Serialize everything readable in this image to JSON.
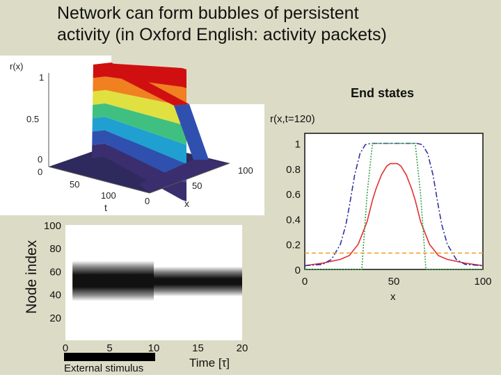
{
  "slide": {
    "title_line1": "Network can form bubbles of persistent",
    "title_line2": "activity (in Oxford English: activity packets)",
    "end_states_label": "End states"
  },
  "chart_data": [
    {
      "type": "surface",
      "zlabel": "r(x)",
      "zticks": [
        "1",
        "0.5",
        "0"
      ],
      "tlabel": "t",
      "tticks": [
        "0",
        "50",
        "100"
      ],
      "xlabel": "x",
      "xticks": [
        "0",
        "50",
        "100"
      ],
      "colormap": [
        "#3a2e6e",
        "#3050b0",
        "#20a0d0",
        "#40c080",
        "#e0e040",
        "#f08020",
        "#d01010"
      ]
    },
    {
      "type": "heatmap",
      "ylabel": "Node index",
      "xlabel": "Time [τ]",
      "xticks": [
        0,
        5,
        10,
        15,
        20
      ],
      "yticks": [
        20,
        40,
        60,
        80,
        100
      ],
      "xlim": [
        0,
        20
      ],
      "ylim": [
        0,
        100
      ],
      "stimulus_label": "External stimulus",
      "stimulus_interval": [
        0,
        10
      ],
      "activity_bands": [
        {
          "t_start": 0.8,
          "t_end": 10,
          "node_low": 34,
          "node_high": 69
        },
        {
          "t_start": 10,
          "t_end": 20,
          "node_low": 38,
          "node_high": 64
        }
      ]
    },
    {
      "type": "line",
      "ylabel": "r(x,t=120)",
      "xlabel": "x",
      "xlim": [
        0,
        100
      ],
      "ylim": [
        0,
        1.08
      ],
      "xticks": [
        0,
        50,
        100
      ],
      "yticks": [
        0,
        0.2,
        0.4,
        0.6,
        0.8,
        1
      ],
      "series": [
        {
          "color": "#e03030",
          "style": "solid",
          "x": [
            0,
            10,
            20,
            25,
            30,
            35,
            38,
            40,
            43,
            46,
            48,
            50,
            52,
            54,
            57,
            60,
            62,
            65,
            70,
            75,
            80,
            90,
            100
          ],
          "y": [
            0.03,
            0.05,
            0.08,
            0.11,
            0.2,
            0.38,
            0.55,
            0.64,
            0.75,
            0.82,
            0.84,
            0.84,
            0.84,
            0.82,
            0.75,
            0.64,
            0.55,
            0.38,
            0.2,
            0.11,
            0.08,
            0.05,
            0.03
          ]
        },
        {
          "color": "#3030a0",
          "style": "dashdot",
          "x": [
            0,
            10,
            15,
            20,
            23,
            25,
            28,
            31,
            34,
            37,
            40,
            60,
            63,
            66,
            69,
            72,
            75,
            77,
            80,
            85,
            90,
            100
          ],
          "y": [
            0.03,
            0.04,
            0.08,
            0.2,
            0.35,
            0.5,
            0.75,
            0.92,
            0.99,
            1.0,
            1.0,
            1.0,
            1.0,
            0.99,
            0.92,
            0.75,
            0.5,
            0.35,
            0.2,
            0.08,
            0.04,
            0.03
          ]
        },
        {
          "color": "#30a040",
          "style": "dotted",
          "x": [
            0,
            32,
            35,
            38,
            62,
            65,
            68,
            100
          ],
          "y": [
            0.0,
            0.0,
            0.6,
            1.0,
            1.0,
            0.6,
            0.0,
            0.0
          ]
        },
        {
          "color": "#f0a030",
          "style": "dashed",
          "x": [
            0,
            100
          ],
          "y": [
            0.13,
            0.13
          ]
        }
      ]
    }
  ]
}
